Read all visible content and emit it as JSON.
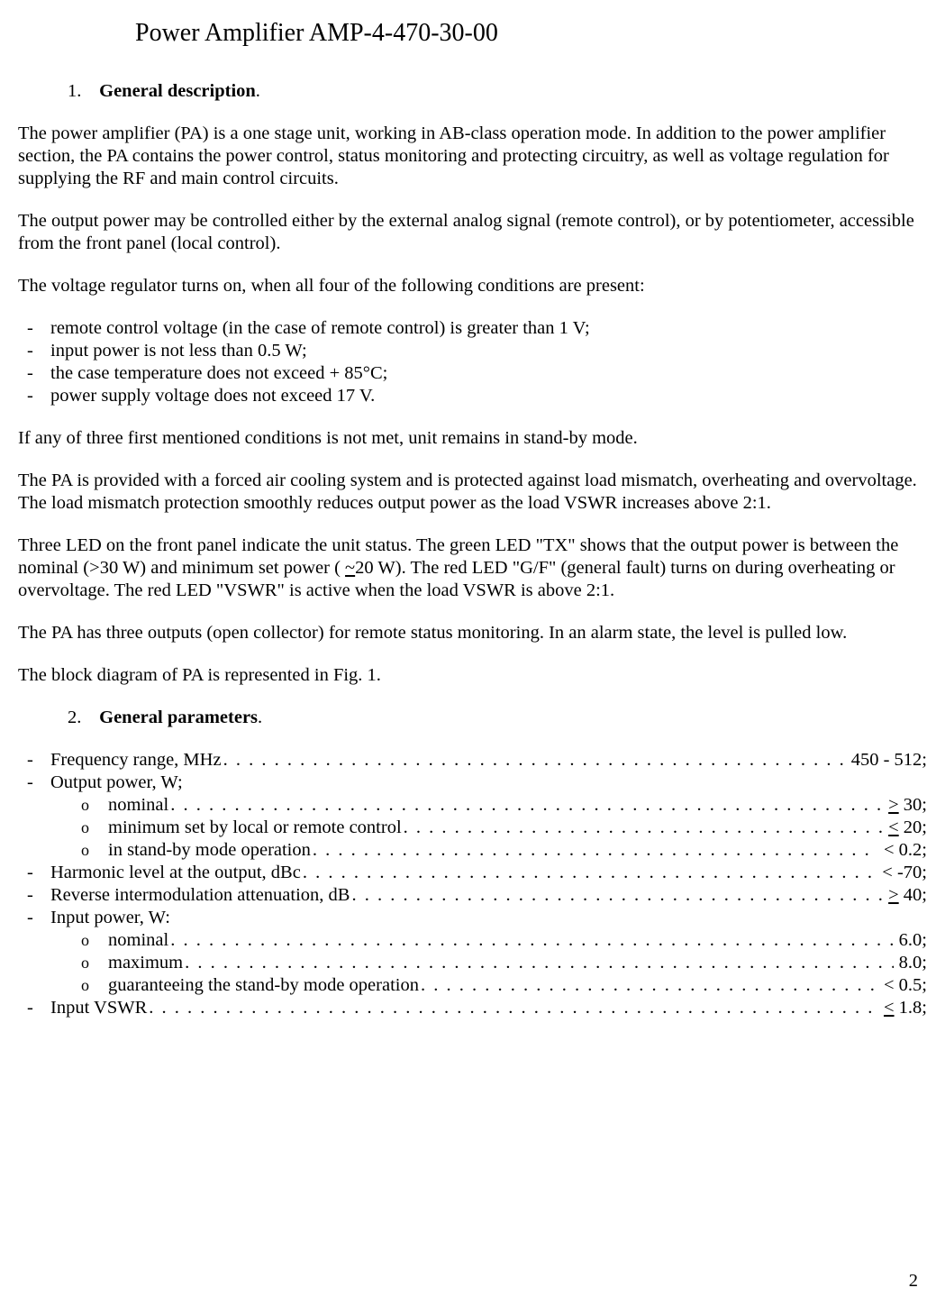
{
  "title": "Power Amplifier AMP-4-470-30-00",
  "section1": {
    "num": "1.",
    "heading": "General description",
    "trail": "."
  },
  "p1": "The power amplifier (PA) is a one stage unit, working in AB-class operation mode. In addition to the power amplifier section, the PA contains the power control, status monitoring and protecting circuitry, as well as voltage regulation for supplying the RF and main control circuits.",
  "p2": "The output power may be controlled either by the external analog signal (remote control), or by potentiometer, accessible from the front panel (local control).",
  "p3": "The voltage regulator turns on, when all four of the following conditions are present:",
  "conditions": [
    "remote control voltage (in the case of remote control) is greater than 1 V;",
    "input power is not less than 0.5 W;",
    "the case temperature does not exceed + 85°C;",
    "power supply voltage does not exceed 17 V."
  ],
  "p4": "If any of three first mentioned conditions is not met, unit remains in stand-by mode.",
  "p5": "The PA is provided with a forced air cooling system and is protected against load mismatch, overheating and overvoltage. The load mismatch protection smoothly reduces output power as the load VSWR increases above 2:1.",
  "p6a": "Three LED on the front panel indicate the unit status. The green LED \"TX\" shows that the output power is between the nominal (>30 W) and minimum set power ( ",
  "p6b": "~",
  "p6c": "20 W).  The red LED \"G/F\" (general fault) turns on during overheating or overvoltage. The red LED \"VSWR\" is active when the load VSWR is above 2:1.",
  "p7": "The PA has three outputs (open collector) for remote status monitoring. In an alarm state, the level is pulled low.",
  "p8": "The block diagram of PA is represented in Fig. 1.",
  "section2": {
    "num": "2.",
    "heading": "General parameters",
    "trail": "."
  },
  "specs": {
    "dash": "-",
    "circ": "o",
    "freq_label": "Frequency range, MHz ",
    "freq_value": " 450 - 512;",
    "outpower_label": "Output power, W;",
    "out_nominal_label": "nominal ",
    "out_nominal_pref": ">",
    "out_nominal_value": " 30;",
    "out_min_label": "minimum set by local or remote control ",
    "out_min_pref": "<",
    "out_min_value": " 20;",
    "out_standby_label": "in stand-by mode operation ",
    "out_standby_value": " < 0.2;",
    "harmonic_label": "Harmonic level at the output, dBc ",
    "harmonic_value": " < -70;",
    "revim_label": "Reverse intermodulation attenuation, dB ",
    "revim_pref": ">",
    "revim_value": " 40;",
    "inpower_label": "Input power, W:",
    "in_nominal_label": "nominal ",
    "in_nominal_value": "  6.0;",
    "in_max_label": "maximum  ",
    "in_max_value": "  8.0;",
    "in_standby_label": "guaranteeing the stand-by mode operation ",
    "in_standby_value": " < 0.5;",
    "vswr_label": "Input VSWR ",
    "vswr_pref": "<",
    "vswr_value": " 1.8;"
  },
  "dots": ". . . . . . . . . . . . . . . . . . . . . . . . . . . . . . . . . . . . . . . . . . . . . . . . . . . . . . . . . . . . . . . . . . . . . . . . . . . . . . . . . . . . . . . . . .",
  "pageNumber": "2"
}
